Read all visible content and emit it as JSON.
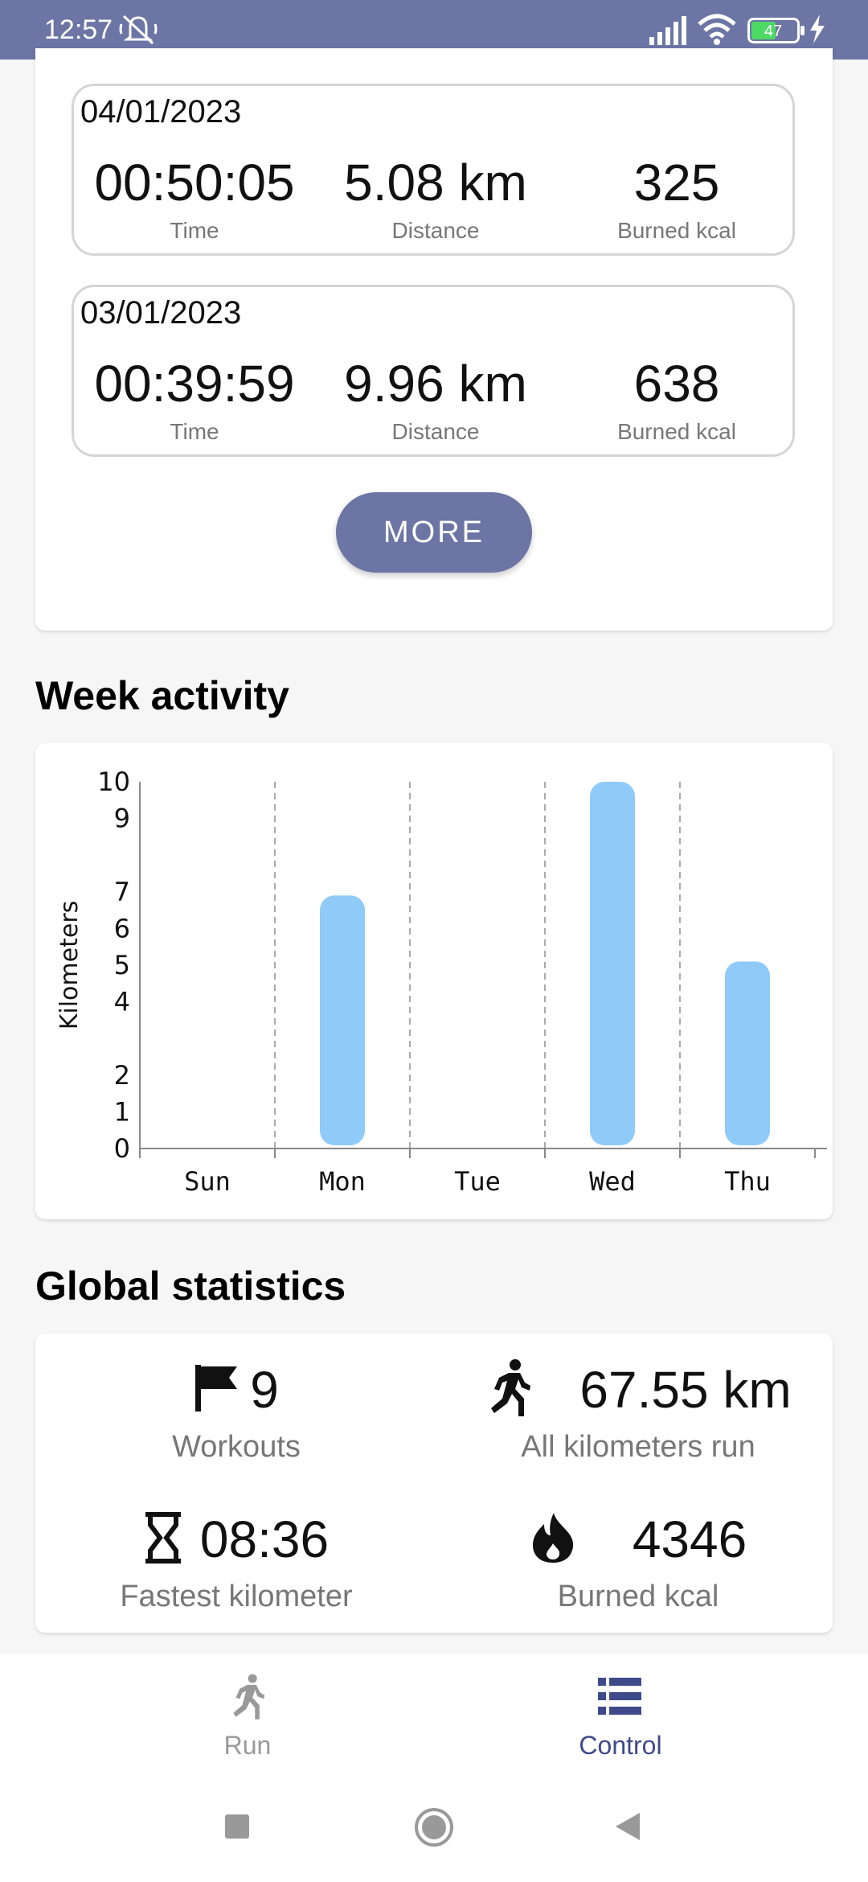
{
  "status_bar": {
    "time": "12:57",
    "battery": "47"
  },
  "workouts": [
    {
      "date": "04/01/2023",
      "time": "00:50:05",
      "distance": "5.08 km",
      "kcal": "325",
      "time_label": "Time",
      "distance_label": "Distance",
      "kcal_label": "Burned kcal"
    },
    {
      "date": "03/01/2023",
      "time": "00:39:59",
      "distance": "9.96 km",
      "kcal": "638",
      "time_label": "Time",
      "distance_label": "Distance",
      "kcal_label": "Burned kcal"
    }
  ],
  "more_button": "MORE",
  "week_activity": {
    "title": "Week activity"
  },
  "chart_data": {
    "type": "bar",
    "categories": [
      "Sun",
      "Mon",
      "Tue",
      "Wed",
      "Thu"
    ],
    "values": [
      0,
      6.9,
      0,
      10,
      5.1
    ],
    "ylabel": "Kilometers",
    "yticks": [
      "0",
      "1",
      "2",
      "4",
      "5",
      "6",
      "7",
      "9",
      "10"
    ],
    "ylim": [
      0,
      10
    ],
    "bar_color": "#90caf9",
    "grid": "vertical dashed"
  },
  "global_stats": {
    "title": "Global statistics",
    "workouts": {
      "value": "9",
      "label": "Workouts",
      "icon": "flag-icon"
    },
    "kilometers": {
      "value": "67.55 km",
      "label": "All kilometers run",
      "icon": "runner-icon"
    },
    "fastest": {
      "value": "08:36",
      "label": "Fastest kilometer",
      "icon": "hourglass-icon"
    },
    "kcal": {
      "value": "4346",
      "label": "Burned kcal",
      "icon": "flame-icon"
    }
  },
  "bottom_nav": {
    "items": [
      {
        "label": "Run",
        "icon": "runner-icon",
        "active": false
      },
      {
        "label": "Control",
        "icon": "list-icon",
        "active": true
      }
    ]
  },
  "colors": {
    "accent": "#6c75a4",
    "active_nav": "#3f4a8a",
    "inactive_nav": "#999999",
    "bar": "#90caf9"
  }
}
